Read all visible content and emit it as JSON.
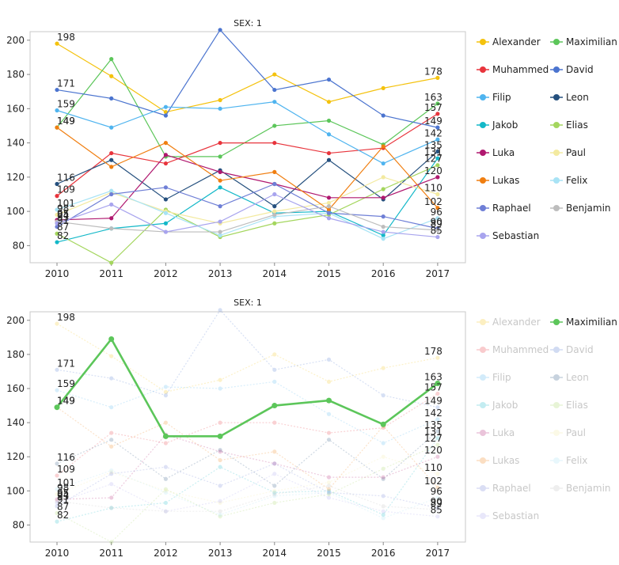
{
  "chart_data": [
    {
      "type": "line",
      "title": "SEX: 1",
      "x": [
        "2010",
        "2011",
        "2012",
        "2013",
        "2014",
        "2015",
        "2016",
        "2017"
      ],
      "ylim": [
        70,
        205
      ],
      "yticks": [
        "80",
        "100",
        "120",
        "140",
        "160",
        "180",
        "200"
      ],
      "highlight": null,
      "series": [
        {
          "name": "Alexander",
          "color": "#f4c20d",
          "values": [
            198,
            179,
            158,
            165,
            180,
            164,
            172,
            178
          ],
          "start_label": "198",
          "end_label": "178"
        },
        {
          "name": "Maximilian",
          "color": "#5cc65a",
          "values": [
            149,
            189,
            132,
            132,
            150,
            153,
            139,
            163
          ],
          "start_label": "149",
          "end_label": "163"
        },
        {
          "name": "Muhammed",
          "color": "#e8343c",
          "values": [
            109,
            134,
            128,
            140,
            140,
            134,
            137,
            157
          ],
          "start_label": "109",
          "end_label": "157"
        },
        {
          "name": "David",
          "color": "#4b74cf",
          "values": [
            171,
            166,
            156,
            206,
            171,
            177,
            156,
            149
          ],
          "start_label": "171",
          "end_label": "149"
        },
        {
          "name": "Filip",
          "color": "#4fb4ef",
          "values": [
            159,
            149,
            161,
            160,
            164,
            145,
            128,
            142
          ],
          "start_label": "159",
          "end_label": "142"
        },
        {
          "name": "Leon",
          "color": "#25507e",
          "values": [
            116,
            130,
            107,
            124,
            103,
            130,
            107,
            135
          ],
          "start_label": "116",
          "end_label": "135"
        },
        {
          "name": "Jakob",
          "color": "#13b8c8",
          "values": [
            82,
            90,
            93,
            114,
            99,
            100,
            86,
            131
          ],
          "start_label": "82",
          "end_label": "131"
        },
        {
          "name": "Elias",
          "color": "#a4d65e",
          "values": [
            87,
            70,
            101,
            85,
            93,
            98,
            113,
            127
          ],
          "start_label": "87",
          "end_label": "127"
        },
        {
          "name": "Luka",
          "color": "#b0186f",
          "values": [
            95,
            96,
            133,
            123,
            116,
            108,
            108,
            120
          ],
          "start_label": "95",
          "end_label": "120"
        },
        {
          "name": "Paul",
          "color": "#f3eaa0",
          "values": [
            98,
            111,
            100,
            93,
            100,
            105,
            120,
            110
          ],
          "start_label": "98",
          "end_label": "110"
        },
        {
          "name": "Lukas",
          "color": "#f07e10",
          "values": [
            149,
            126,
            140,
            118,
            123,
            101,
            138,
            102
          ],
          "start_label": "149",
          "end_label": "102"
        },
        {
          "name": "Felix",
          "color": "#a8e3f5",
          "values": [
            101,
            112,
            99,
            86,
            97,
            99,
            84,
            96
          ],
          "start_label": "101",
          "end_label": "96"
        },
        {
          "name": "Raphael",
          "color": "#6f7fd6",
          "values": [
            91,
            110,
            114,
            103,
            116,
            99,
            97,
            90
          ],
          "start_label": "91",
          "end_label": "90"
        },
        {
          "name": "Benjamin",
          "color": "#bdbdbd",
          "values": [
            94,
            90,
            88,
            88,
            98,
            103,
            91,
            89
          ],
          "start_label": "94",
          "end_label": "89"
        },
        {
          "name": "Sebastian",
          "color": "#a8a4ee",
          "values": [
            93,
            104,
            88,
            94,
            110,
            96,
            88,
            85
          ],
          "start_label": "93",
          "end_label": "85"
        }
      ]
    },
    {
      "type": "line",
      "title": "SEX: 1",
      "x": [
        "2010",
        "2011",
        "2012",
        "2013",
        "2014",
        "2015",
        "2016",
        "2017"
      ],
      "ylim": [
        70,
        205
      ],
      "yticks": [
        "80",
        "100",
        "120",
        "140",
        "160",
        "180",
        "200"
      ],
      "highlight": "Maximilian",
      "series": [
        {
          "name": "Alexander",
          "color": "#f4c20d",
          "values": [
            198,
            179,
            158,
            165,
            180,
            164,
            172,
            178
          ],
          "start_label": "198",
          "end_label": "178"
        },
        {
          "name": "Maximilian",
          "color": "#5cc65a",
          "values": [
            149,
            189,
            132,
            132,
            150,
            153,
            139,
            163
          ],
          "start_label": "149",
          "end_label": "163"
        },
        {
          "name": "Muhammed",
          "color": "#e8343c",
          "values": [
            109,
            134,
            128,
            140,
            140,
            134,
            137,
            157
          ],
          "start_label": "109",
          "end_label": "157"
        },
        {
          "name": "David",
          "color": "#4b74cf",
          "values": [
            171,
            166,
            156,
            206,
            171,
            177,
            156,
            149
          ],
          "start_label": "171",
          "end_label": "149"
        },
        {
          "name": "Filip",
          "color": "#4fb4ef",
          "values": [
            159,
            149,
            161,
            160,
            164,
            145,
            128,
            142
          ],
          "start_label": "159",
          "end_label": "142"
        },
        {
          "name": "Leon",
          "color": "#25507e",
          "values": [
            116,
            130,
            107,
            124,
            103,
            130,
            107,
            135
          ],
          "start_label": "116",
          "end_label": "135"
        },
        {
          "name": "Jakob",
          "color": "#13b8c8",
          "values": [
            82,
            90,
            93,
            114,
            99,
            100,
            86,
            131
          ],
          "start_label": "82",
          "end_label": "131"
        },
        {
          "name": "Elias",
          "color": "#a4d65e",
          "values": [
            87,
            70,
            101,
            85,
            93,
            98,
            113,
            127
          ],
          "start_label": "87",
          "end_label": "127"
        },
        {
          "name": "Luka",
          "color": "#b0186f",
          "values": [
            95,
            96,
            133,
            123,
            116,
            108,
            108,
            120
          ],
          "start_label": "95",
          "end_label": "120"
        },
        {
          "name": "Paul",
          "color": "#f3eaa0",
          "values": [
            98,
            111,
            100,
            93,
            100,
            105,
            120,
            110
          ],
          "start_label": "98",
          "end_label": "110"
        },
        {
          "name": "Lukas",
          "color": "#f07e10",
          "values": [
            149,
            126,
            140,
            118,
            123,
            101,
            138,
            102
          ],
          "start_label": "149",
          "end_label": "102"
        },
        {
          "name": "Felix",
          "color": "#a8e3f5",
          "values": [
            101,
            112,
            99,
            86,
            97,
            99,
            84,
            96
          ],
          "start_label": "101",
          "end_label": "96"
        },
        {
          "name": "Raphael",
          "color": "#6f7fd6",
          "values": [
            91,
            110,
            114,
            103,
            116,
            99,
            97,
            90
          ],
          "start_label": "91",
          "end_label": "90"
        },
        {
          "name": "Benjamin",
          "color": "#bdbdbd",
          "values": [
            94,
            90,
            88,
            88,
            98,
            103,
            91,
            89
          ],
          "start_label": "94",
          "end_label": "89"
        },
        {
          "name": "Sebastian",
          "color": "#a8a4ee",
          "values": [
            93,
            104,
            88,
            94,
            110,
            96,
            88,
            85
          ],
          "start_label": "93",
          "end_label": "85"
        }
      ]
    }
  ]
}
